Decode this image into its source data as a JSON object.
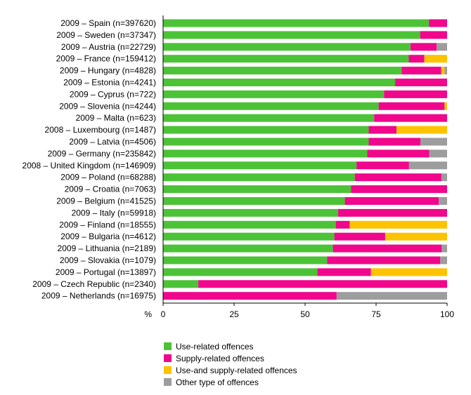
{
  "chart_data": {
    "type": "bar",
    "orientation": "horizontal",
    "stacked": true,
    "unit_label": "%",
    "xlim": [
      0,
      100
    ],
    "x_ticks": [
      "0",
      "25",
      "50",
      "75",
      "100"
    ],
    "grid": false,
    "legend_position": "bottom",
    "categories": [
      "2009 – Spain (n=397620)",
      "2009 – Sweden (n=37347)",
      "2009 – Austria (n=22729)",
      "2009 – France (n=159412)",
      "2009 – Hungary (n=4828)",
      "2009 – Estonia (n=4241)",
      "2009 – Cyprus (n=722)",
      "2009 – Slovenia (n=4244)",
      "2009 – Malta (n=623)",
      "2008 – Luxembourg (n=1487)",
      "2009 – Latvia (n=4506)",
      "2009 – Germany (n=235842)",
      "2008 – United Kingdom (n=146909)",
      "2009 – Poland (n=68288)",
      "2009 – Croatia (n=7063)",
      "2009 – Belgium (n=41525)",
      "2009 – Italy (n=59918)",
      "2009 – Finland (n=18555)",
      "2009 – Bulgaria (n=4612)",
      "2009 – Lithuania (n=2189)",
      "2009 – Slovakia (n=1079)",
      "2009 – Portugal (n=13897)",
      "2009 – Czech Republic (n=2340)",
      "2009 – Netherlands (n=16975)"
    ],
    "series": [
      {
        "name": "Use-related offences",
        "color": "#4cc337",
        "values": [
          93.6,
          90.5,
          87.1,
          86.5,
          84.0,
          81.7,
          77.8,
          75.9,
          74.3,
          72.4,
          72.4,
          71.9,
          68.1,
          67.5,
          66.2,
          64.0,
          61.6,
          60.8,
          60.3,
          59.8,
          57.8,
          54.3,
          12.4,
          0.0
        ]
      },
      {
        "name": "Supply-related offences",
        "color": "#f0078c",
        "values": [
          6.4,
          9.5,
          9.2,
          5.5,
          13.9,
          18.3,
          22.2,
          23.2,
          25.7,
          9.8,
          18.2,
          21.8,
          18.5,
          30.5,
          33.8,
          33.1,
          38.4,
          4.9,
          17.9,
          38.3,
          39.8,
          18.9,
          87.6,
          61.1
        ]
      },
      {
        "name": "Use-and supply-related offences",
        "color": "#fdc300",
        "values": [
          0.0,
          0.0,
          0.0,
          8.0,
          1.2,
          0.0,
          0.0,
          0.9,
          0.0,
          17.8,
          0.0,
          0.0,
          0.0,
          0.0,
          0.0,
          0.0,
          0.0,
          34.3,
          21.8,
          0.0,
          0.0,
          26.8,
          0.0,
          0.0
        ]
      },
      {
        "name": "Other type of offences",
        "color": "#9d9d9d",
        "values": [
          0.0,
          0.0,
          3.7,
          0.0,
          0.9,
          0.0,
          0.0,
          0.0,
          0.0,
          0.0,
          9.4,
          6.3,
          13.4,
          2.0,
          0.0,
          2.9,
          0.0,
          0.0,
          0.0,
          1.9,
          2.4,
          0.0,
          0.0,
          38.9
        ]
      }
    ]
  }
}
